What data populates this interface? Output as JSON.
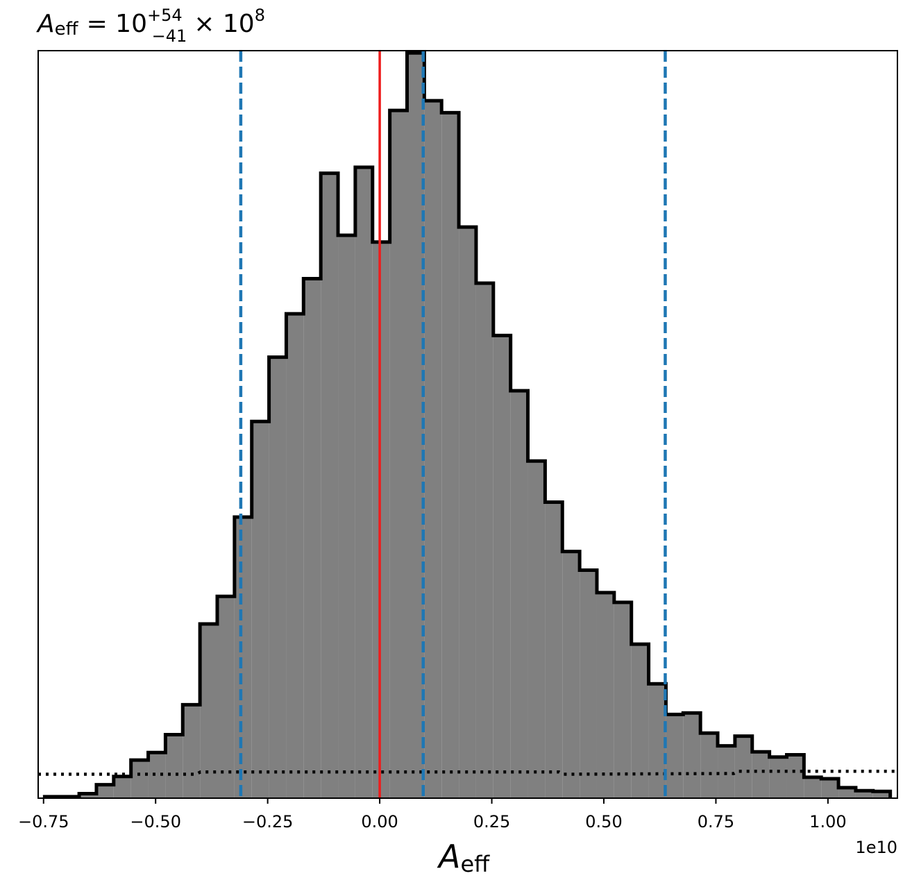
{
  "chart_data": {
    "type": "histogram",
    "title": {
      "symbol": "A",
      "symbol_sub": "eff",
      "equals": "= 10",
      "sup": "+54",
      "sub": "−41",
      "times": "× 10",
      "exp": "8"
    },
    "xlabel": {
      "symbol": "A",
      "sub": "eff"
    },
    "ylabel": "",
    "x_offset_label": "1e10",
    "xlim": [
      -0.762,
      1.155
    ],
    "ylim": [
      0,
      1.0
    ],
    "x_ticks": [
      -0.75,
      -0.5,
      -0.25,
      0.0,
      0.25,
      0.5,
      0.75,
      1.0
    ],
    "x_tick_labels": [
      "−0.75",
      "−0.50",
      "−0.25",
      "0.00",
      "0.25",
      "0.50",
      "0.75",
      "1.00"
    ],
    "yaxis_visible": false,
    "grid": false,
    "units_note": "x values in units of 1e10",
    "bins": {
      "start": -0.7475,
      "width": 0.0385,
      "counts": [
        0.002,
        0.002,
        0.006,
        0.018,
        0.029,
        0.051,
        0.061,
        0.085,
        0.125,
        0.233,
        0.27,
        0.376,
        0.504,
        0.59,
        0.648,
        0.695,
        0.836,
        0.753,
        0.844,
        0.744,
        0.92,
        0.997,
        0.933,
        0.917,
        0.764,
        0.689,
        0.619,
        0.545,
        0.451,
        0.396,
        0.33,
        0.305,
        0.275,
        0.262,
        0.206,
        0.153,
        0.112,
        0.114,
        0.087,
        0.07,
        0.083,
        0.062,
        0.055,
        0.058,
        0.028,
        0.026,
        0.014,
        0.01,
        0.009
      ]
    },
    "hist_fill_color": "#808080",
    "hist_edge_color": "#000000",
    "reference_line": {
      "x": 0.0,
      "color": "#ee1c1c"
    },
    "quantile_lines": {
      "x": [
        -0.31,
        0.097,
        0.637
      ],
      "color": "#1f77b4"
    },
    "prior": {
      "style": "dotted",
      "color": "#000000",
      "x": [
        -0.762,
        -0.41,
        -0.4,
        0.4,
        0.41,
        0.79,
        0.8,
        1.155
      ],
      "y": [
        0.032,
        0.032,
        0.035,
        0.035,
        0.032,
        0.033,
        0.036,
        0.036
      ]
    }
  }
}
